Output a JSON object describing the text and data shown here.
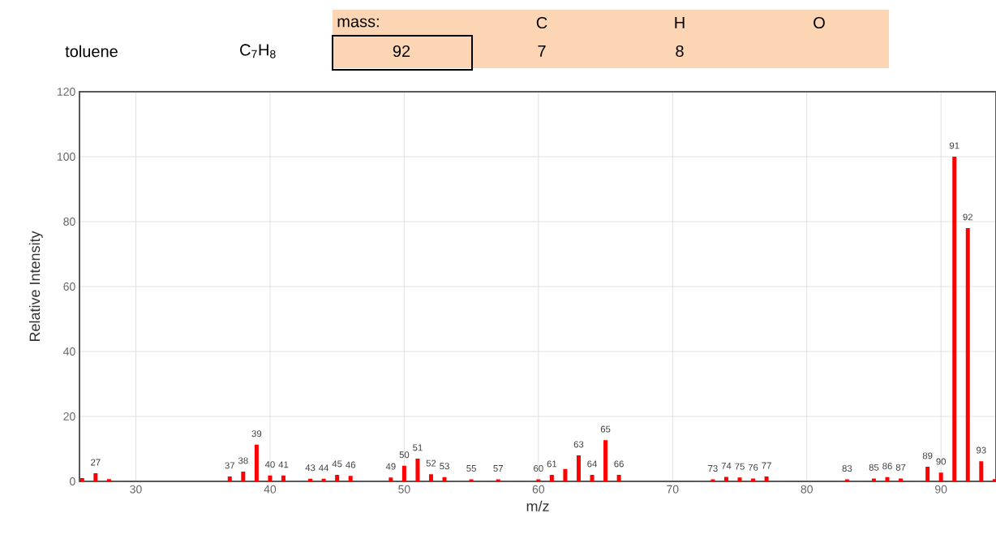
{
  "chart_data": {
    "type": "bar",
    "xlabel": "m/z",
    "ylabel": "Relative Intensity",
    "color": "#ff0000",
    "x": [
      26,
      27,
      28,
      37,
      38,
      39,
      40,
      41,
      43,
      44,
      45,
      46,
      49,
      50,
      51,
      52,
      53,
      55,
      57,
      60,
      61,
      62,
      63,
      64,
      65,
      66,
      73,
      74,
      75,
      76,
      77,
      83,
      85,
      86,
      87,
      89,
      90,
      91,
      92,
      93,
      94
    ],
    "values": [
      1.0,
      2.5,
      0.7,
      1.5,
      3.0,
      11.3,
      1.8,
      1.8,
      0.8,
      0.8,
      2.0,
      1.7,
      1.2,
      4.8,
      7.0,
      2.2,
      1.3,
      0.6,
      0.6,
      0.6,
      2.0,
      3.8,
      8.0,
      2.0,
      12.7,
      2.0,
      0.6,
      1.4,
      1.2,
      0.9,
      1.5,
      0.6,
      0.9,
      1.3,
      0.9,
      4.5,
      2.7,
      100,
      78,
      6.2,
      0.7
    ],
    "xlim": [
      25.8,
      94.1
    ],
    "ylim": [
      0,
      120
    ],
    "xticks": [
      30,
      40,
      50,
      60,
      70,
      80,
      90
    ],
    "yticks": [
      0,
      20,
      40,
      60,
      80,
      100,
      120
    ],
    "grid": true,
    "annotations": [
      "toluene",
      "C$_{7}$H$_{8}$",
      "mass:",
      "92",
      "C",
      "H",
      "O",
      "7",
      "8",
      {
        "text": "27",
        "x": 27,
        "y": 2.5
      },
      {
        "text": "37",
        "x": 37,
        "y": 1.5
      },
      {
        "text": "38",
        "x": 38,
        "y": 3.0
      },
      {
        "text": "39",
        "x": 39,
        "y": 11.3
      },
      {
        "text": "40",
        "x": 40,
        "y": 1.8
      },
      {
        "text": "41",
        "x": 41,
        "y": 1.8
      },
      {
        "text": "43",
        "x": 43,
        "y": 0.8
      },
      {
        "text": "44",
        "x": 44,
        "y": 0.8
      },
      {
        "text": "45",
        "x": 45,
        "y": 2.0
      },
      {
        "text": "46",
        "x": 46,
        "y": 1.7
      },
      {
        "text": "49",
        "x": 49,
        "y": 1.2
      },
      {
        "text": "50",
        "x": 50,
        "y": 4.8
      },
      {
        "text": "51",
        "x": 51,
        "y": 7.0
      },
      {
        "text": "52",
        "x": 52,
        "y": 2.2
      },
      {
        "text": "53",
        "x": 53,
        "y": 1.3
      },
      {
        "text": "55",
        "x": 55,
        "y": 0.6
      },
      {
        "text": "57",
        "x": 57,
        "y": 0.6
      },
      {
        "text": "60",
        "x": 60,
        "y": 0.6
      },
      {
        "text": "61",
        "x": 61,
        "y": 2.0
      },
      {
        "text": "63",
        "x": 63,
        "y": 8.0
      },
      {
        "text": "64",
        "x": 64,
        "y": 2.0
      },
      {
        "text": "65",
        "x": 65,
        "y": 12.7
      },
      {
        "text": "66",
        "x": 66,
        "y": 2.0
      },
      {
        "text": "73",
        "x": 73,
        "y": 0.6
      },
      {
        "text": "74",
        "x": 74,
        "y": 1.4
      },
      {
        "text": "75",
        "x": 75,
        "y": 1.2
      },
      {
        "text": "76",
        "x": 76,
        "y": 0.9
      },
      {
        "text": "77",
        "x": 77,
        "y": 1.5
      },
      {
        "text": "83",
        "x": 83,
        "y": 0.6
      },
      {
        "text": "85",
        "x": 85,
        "y": 0.9
      },
      {
        "text": "86",
        "x": 86,
        "y": 1.3
      },
      {
        "text": "87",
        "x": 87,
        "y": 0.9
      },
      {
        "text": "89",
        "x": 89,
        "y": 4.5
      },
      {
        "text": "90",
        "x": 90,
        "y": 2.7
      },
      {
        "text": "91",
        "x": 91,
        "y": 100
      },
      {
        "text": "92",
        "x": 92,
        "y": 78
      },
      {
        "text": "93",
        "x": 93,
        "y": 6.2
      }
    ]
  }
}
